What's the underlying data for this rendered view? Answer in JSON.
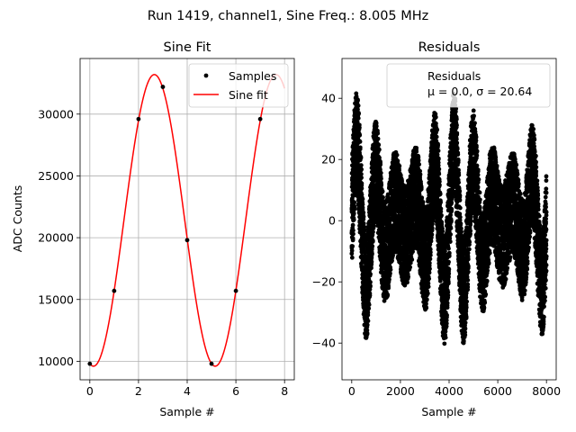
{
  "figure": {
    "title": "Run 1419, channel1, Sine Freq.: 8.005 MHz"
  },
  "chart_data": [
    {
      "type": "line",
      "title": "Sine Fit",
      "xlabel": "Sample #",
      "ylabel": "ADC Counts",
      "xlim": [
        -0.4,
        8.4
      ],
      "ylim": [
        8500,
        34500
      ],
      "xticks": [
        0,
        2,
        4,
        6,
        8
      ],
      "yticks": [
        10000,
        15000,
        20000,
        25000,
        30000
      ],
      "grid": true,
      "legend_position": "top-right",
      "series": [
        {
          "name": "Samples",
          "kind": "scatter",
          "color": "#000000",
          "x": [
            0,
            1,
            2,
            3,
            4,
            5,
            6,
            7
          ],
          "y": [
            9800,
            15700,
            29600,
            32200,
            19800,
            9800,
            15700,
            29600
          ]
        },
        {
          "name": "Sine fit",
          "kind": "line",
          "color": "#ff0000",
          "model": {
            "offset": 21400,
            "amplitude": 11800,
            "period": 5,
            "phase_x": 0.15,
            "x_range": [
              0,
              8
            ]
          }
        }
      ]
    },
    {
      "type": "scatter",
      "title": "Residuals",
      "xlabel": "Sample #",
      "ylabel": "",
      "xlim": [
        -400,
        8400
      ],
      "ylim": [
        -52,
        53
      ],
      "xticks": [
        0,
        2000,
        4000,
        6000,
        8000
      ],
      "yticks": [
        -40,
        -20,
        0,
        20,
        40
      ],
      "grid": false,
      "legend_position": "top-right",
      "series": [
        {
          "name": "Residuals",
          "color": "#000000",
          "n_points": 8000,
          "x_range": [
            0,
            8000
          ],
          "y_min": -47,
          "y_max": 44,
          "mean": 0.0,
          "std": 20.64,
          "oscillation_period": 800
        }
      ],
      "legend": {
        "label": "Residuals",
        "stats": "μ = 0.0, σ = 20.64"
      }
    }
  ]
}
